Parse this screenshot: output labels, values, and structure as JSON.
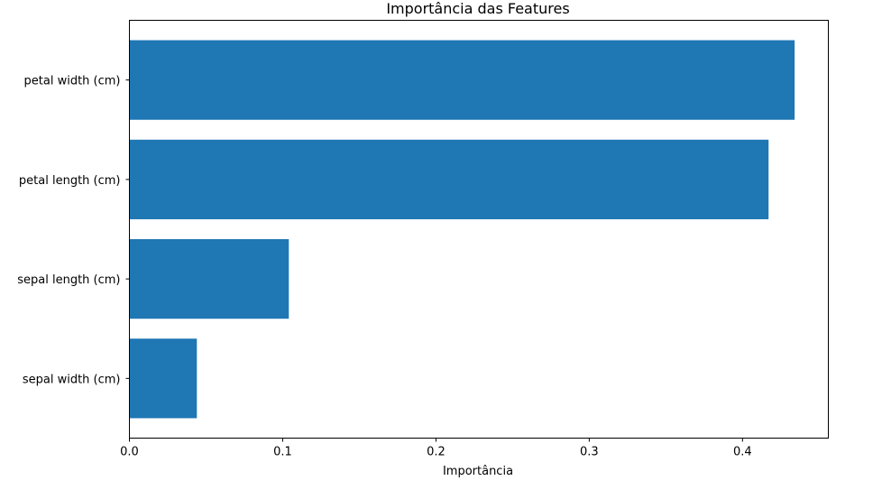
{
  "chart_data": {
    "type": "bar",
    "orientation": "horizontal",
    "title": "Importância das Features",
    "xlabel": "Importância",
    "ylabel": "",
    "categories": [
      "sepal width (cm)",
      "sepal length (cm)",
      "petal length (cm)",
      "petal width (cm)"
    ],
    "values": [
      0.044,
      0.104,
      0.417,
      0.434
    ],
    "xlim": [
      0,
      0.456
    ],
    "xticks": [
      0.0,
      0.1,
      0.2,
      0.3,
      0.4
    ],
    "xtick_labels": [
      "0.0",
      "0.1",
      "0.2",
      "0.3",
      "0.4"
    ],
    "bar_color": "#1f77b4",
    "grid": false,
    "legend": "none"
  }
}
